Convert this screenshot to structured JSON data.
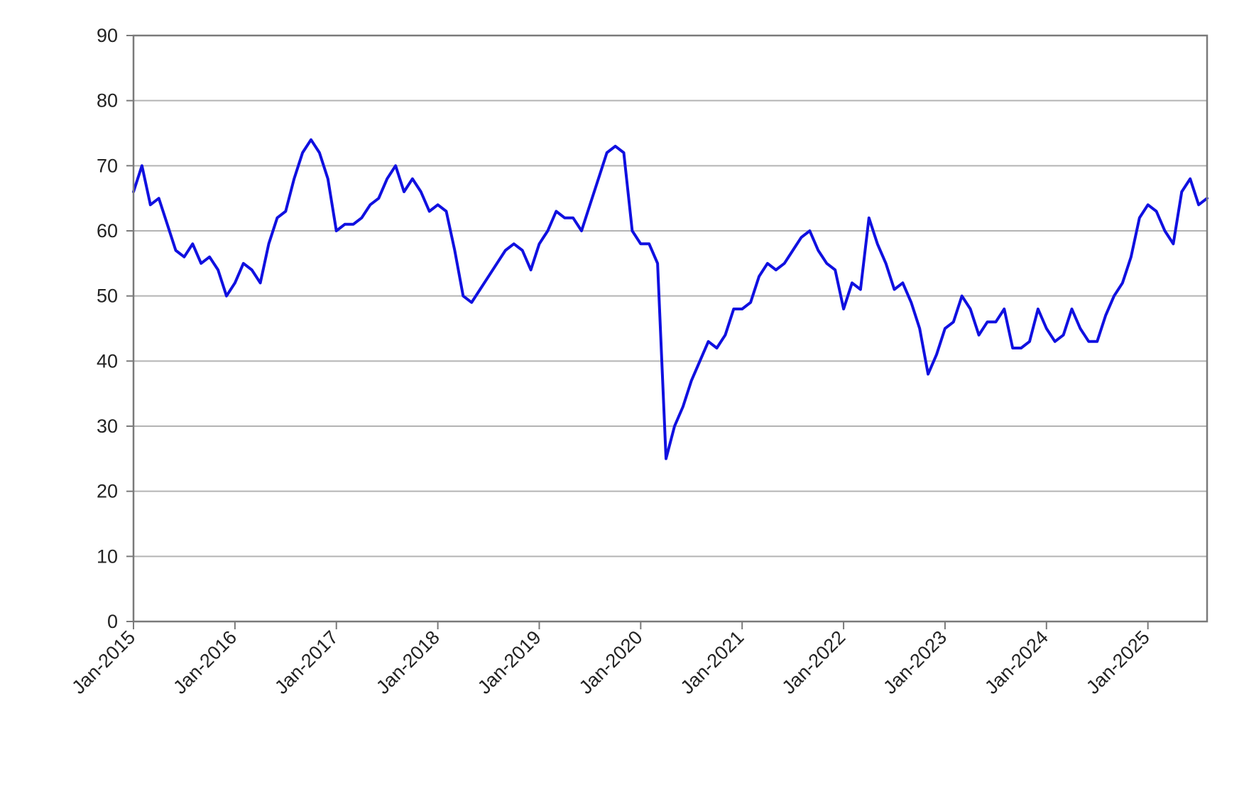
{
  "chart_data": {
    "type": "line",
    "title": "",
    "xlabel": "",
    "ylabel": "",
    "ylim": [
      0,
      90
    ],
    "yticks": [
      0,
      10,
      20,
      30,
      40,
      50,
      60,
      70,
      80,
      90
    ],
    "xlim": [
      "2015-01",
      "2025-08"
    ],
    "xticks": [
      "Jan-2015",
      "Jan-2016",
      "Jan-2017",
      "Jan-2018",
      "Jan-2019",
      "Jan-2020",
      "Jan-2021",
      "Jan-2022",
      "Jan-2023",
      "Jan-2024",
      "Jan-2025"
    ],
    "grid": true,
    "legend": "none",
    "colors": {
      "line": "#1010e0",
      "grid": "#b4b4b4",
      "frame": "#7a7a7a"
    },
    "series": [
      {
        "x": [
          "2015-01",
          "2015-02",
          "2015-03",
          "2015-04",
          "2015-05",
          "2015-06",
          "2015-07",
          "2015-08",
          "2015-09",
          "2015-10",
          "2015-11",
          "2015-12",
          "2016-01",
          "2016-02",
          "2016-03",
          "2016-04",
          "2016-05",
          "2016-06",
          "2016-07",
          "2016-08",
          "2016-09",
          "2016-10",
          "2016-11",
          "2016-12",
          "2017-01",
          "2017-02",
          "2017-03",
          "2017-04",
          "2017-05",
          "2017-06",
          "2017-07",
          "2017-08",
          "2017-09",
          "2017-10",
          "2017-11",
          "2017-12",
          "2018-01",
          "2018-02",
          "2018-03",
          "2018-04",
          "2018-05",
          "2018-06",
          "2018-07",
          "2018-08",
          "2018-09",
          "2018-10",
          "2018-11",
          "2018-12",
          "2019-01",
          "2019-02",
          "2019-03",
          "2019-04",
          "2019-05",
          "2019-06",
          "2019-07",
          "2019-08",
          "2019-09",
          "2019-10",
          "2019-11",
          "2019-12",
          "2020-01",
          "2020-02",
          "2020-03",
          "2020-04",
          "2020-05",
          "2020-06",
          "2020-07",
          "2020-08",
          "2020-09",
          "2020-10",
          "2020-11",
          "2020-12",
          "2021-01",
          "2021-02",
          "2021-03",
          "2021-04",
          "2021-05",
          "2021-06",
          "2021-07",
          "2021-08",
          "2021-09",
          "2021-10",
          "2021-11",
          "2021-12",
          "2022-01",
          "2022-02",
          "2022-03",
          "2022-04",
          "2022-05",
          "2022-06",
          "2022-07",
          "2022-08",
          "2022-09",
          "2022-10",
          "2022-11",
          "2022-12",
          "2023-01",
          "2023-02",
          "2023-03",
          "2023-04",
          "2023-05",
          "2023-06",
          "2023-07",
          "2023-08",
          "2023-09",
          "2023-10",
          "2023-11",
          "2023-12",
          "2024-01",
          "2024-02",
          "2024-03",
          "2024-04",
          "2024-05",
          "2024-06",
          "2024-07",
          "2024-08",
          "2024-09",
          "2024-10",
          "2024-11",
          "2024-12",
          "2025-01",
          "2025-02",
          "2025-03",
          "2025-04",
          "2025-05",
          "2025-06",
          "2025-07",
          "2025-08"
        ],
        "values": [
          66,
          70,
          64,
          65,
          61,
          57,
          56,
          58,
          55,
          56,
          54,
          50,
          52,
          55,
          54,
          52,
          58,
          62,
          63,
          68,
          72,
          74,
          72,
          68,
          60,
          61,
          61,
          62,
          64,
          65,
          68,
          70,
          66,
          68,
          66,
          63,
          64,
          63,
          57,
          50,
          49,
          51,
          53,
          55,
          57,
          58,
          57,
          54,
          58,
          60,
          63,
          62,
          62,
          60,
          64,
          68,
          72,
          73,
          72,
          60,
          58,
          58,
          55,
          25,
          30,
          33,
          37,
          40,
          43,
          42,
          44,
          48,
          48,
          49,
          53,
          55,
          54,
          55,
          57,
          59,
          60,
          57,
          55,
          54,
          48,
          52,
          51,
          62,
          58,
          55,
          51,
          52,
          49,
          45,
          38,
          41,
          45,
          46,
          50,
          48,
          44,
          46,
          46,
          48,
          42,
          42,
          43,
          48,
          45,
          43,
          44,
          48,
          45,
          43,
          43,
          47,
          50,
          52,
          56,
          62,
          64,
          63,
          60,
          58,
          66,
          68,
          64,
          65
        ]
      }
    ]
  }
}
